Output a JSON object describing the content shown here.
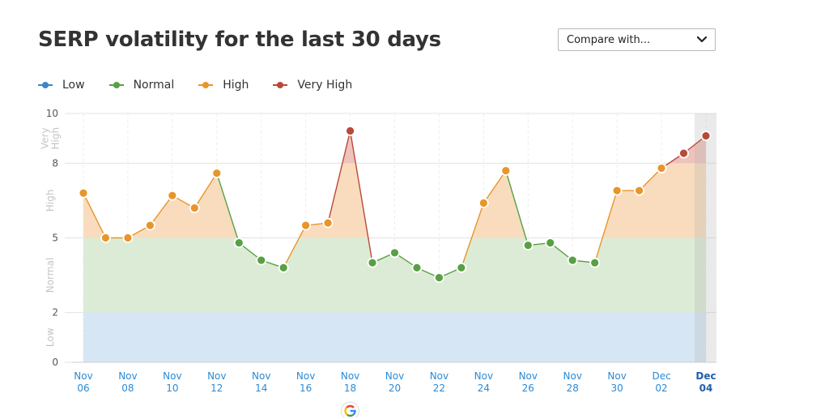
{
  "header": {
    "title": "SERP volatility for the last 30 days",
    "compare_label": "Compare with..."
  },
  "legend": [
    {
      "label": "Low",
      "color": "#3b86c8"
    },
    {
      "label": "Normal",
      "color": "#57a043"
    },
    {
      "label": "High",
      "color": "#e8952a"
    },
    {
      "label": "Very High",
      "color": "#b84a3a"
    }
  ],
  "chart_data": {
    "type": "line",
    "title": "SERP volatility for the last 30 days",
    "series": [
      {
        "x": [
          "Nov 06",
          "Nov 07",
          "Nov 08",
          "Nov 09",
          "Nov 10",
          "Nov 11",
          "Nov 12",
          "Nov 13",
          "Nov 14",
          "Nov 15",
          "Nov 16",
          "Nov 17",
          "Nov 18",
          "Nov 19",
          "Nov 20",
          "Nov 21",
          "Nov 22",
          "Nov 23",
          "Nov 24",
          "Nov 25",
          "Nov 26",
          "Nov 27",
          "Nov 28",
          "Nov 29",
          "Nov 30",
          "Dec 01",
          "Dec 02",
          "Dec 03",
          "Dec 04"
        ],
        "values": [
          6.8,
          5.0,
          5.0,
          5.5,
          6.7,
          6.2,
          7.6,
          4.8,
          4.1,
          3.8,
          5.5,
          5.6,
          9.3,
          4.0,
          4.4,
          3.8,
          3.4,
          3.8,
          6.4,
          7.7,
          4.7,
          4.8,
          4.1,
          4.0,
          6.9,
          6.9,
          7.8,
          8.4,
          9.1
        ]
      }
    ],
    "x_tick_labels": [
      [
        "Nov",
        "06"
      ],
      [
        "Nov",
        "08"
      ],
      [
        "Nov",
        "10"
      ],
      [
        "Nov",
        "12"
      ],
      [
        "Nov",
        "14"
      ],
      [
        "Nov",
        "16"
      ],
      [
        "Nov",
        "18"
      ],
      [
        "Nov",
        "20"
      ],
      [
        "Nov",
        "22"
      ],
      [
        "Nov",
        "24"
      ],
      [
        "Nov",
        "26"
      ],
      [
        "Nov",
        "28"
      ],
      [
        "Nov",
        "30"
      ],
      [
        "Dec",
        "02"
      ],
      [
        "Dec",
        "04"
      ]
    ],
    "y_ticks": [
      "0",
      "2",
      "5",
      "8",
      "10"
    ],
    "ylim": [
      0,
      10
    ],
    "bands": [
      {
        "label": "Low",
        "from": 0,
        "to": 2
      },
      {
        "label": "Normal",
        "from": 2,
        "to": 5
      },
      {
        "label": "High",
        "from": 5,
        "to": 8
      },
      {
        "label": "Very High",
        "from": 8,
        "to": 10
      }
    ],
    "highlighted_x": "Dec 04",
    "grid": true,
    "legend_position": "top-left"
  }
}
